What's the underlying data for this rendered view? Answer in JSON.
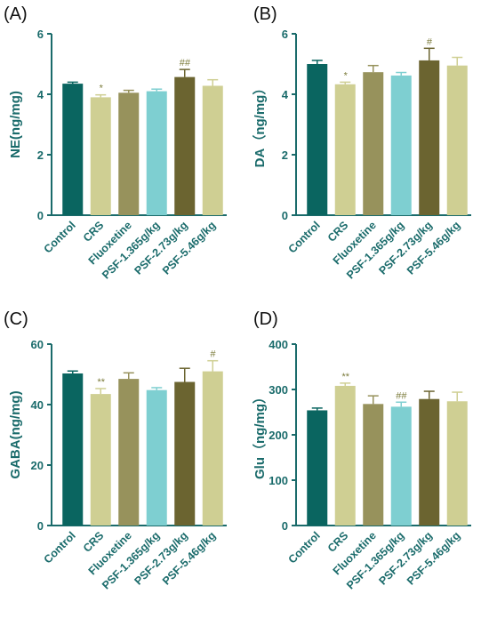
{
  "colors": {
    "axis": "#1a6b6b",
    "sig": "#7c7c3c",
    "Control": "#0a6560",
    "CRS": "#cfcf93",
    "Fluoxetine": "#97925c",
    "PSF-1.365g/kg": "#7ecfd1",
    "PSF-2.73g/kg": "#6b6430",
    "PSF-5.46g/kg": "#cfcf93",
    "error": "#555555"
  },
  "chart_data": [
    {
      "panel": "(A)",
      "type": "bar",
      "ylabel": "NE(ng/mg)",
      "ylim": [
        0,
        6
      ],
      "yticks": [
        0,
        2,
        4,
        6
      ],
      "categories": [
        "Control",
        "CRS",
        "Fluoxetine",
        "PSF-1.365g/kg",
        "PSF-2.73g/kg",
        "PSF-5.46g/kg"
      ],
      "values": [
        4.35,
        3.9,
        4.05,
        4.1,
        4.57,
        4.28
      ],
      "errors": [
        0.05,
        0.08,
        0.08,
        0.07,
        0.25,
        0.2
      ],
      "annotations": [
        "",
        "*",
        "",
        "",
        "##",
        ""
      ]
    },
    {
      "panel": "(B)",
      "type": "bar",
      "ylabel": "DA（ng/mg）",
      "ylim": [
        0,
        6
      ],
      "yticks": [
        0,
        2,
        4,
        6
      ],
      "categories": [
        "Control",
        "CRS",
        "Fluoxetine",
        "PSF-1.365g/kg",
        "PSF-2.73g/kg",
        "PSF-5.46g/kg"
      ],
      "values": [
        5.0,
        4.33,
        4.73,
        4.62,
        5.12,
        4.95
      ],
      "errors": [
        0.12,
        0.07,
        0.22,
        0.1,
        0.4,
        0.27
      ],
      "annotations": [
        "",
        "*",
        "",
        "",
        "#",
        ""
      ]
    },
    {
      "panel": "(C)",
      "type": "bar",
      "ylabel": "GABA(ng/mg)",
      "ylim": [
        0,
        60
      ],
      "yticks": [
        0,
        20,
        40,
        60
      ],
      "categories": [
        "Control",
        "CRS",
        "Fluoxetine",
        "PSF-1.365g/kg",
        "PSF-2.73g/kg",
        "PSF-5.46g/kg"
      ],
      "values": [
        50.3,
        43.5,
        48.5,
        44.8,
        47.5,
        51.0
      ],
      "errors": [
        0.8,
        1.8,
        2.0,
        0.8,
        4.5,
        3.5
      ],
      "annotations": [
        "",
        "**",
        "",
        "",
        "",
        "#"
      ]
    },
    {
      "panel": "(D)",
      "type": "bar",
      "ylabel": "Glu（ng/mg）",
      "ylim": [
        0,
        400
      ],
      "yticks": [
        0,
        100,
        200,
        300,
        400
      ],
      "categories": [
        "Control",
        "CRS",
        "Fluoxetine",
        "PSF-1.365g/kg",
        "PSF-2.73g/kg",
        "PSF-5.46g/kg"
      ],
      "values": [
        254,
        308,
        268,
        262,
        279,
        274
      ],
      "errors": [
        5,
        6,
        18,
        10,
        17,
        20
      ],
      "annotations": [
        "",
        "**",
        "",
        "##",
        "",
        ""
      ]
    }
  ]
}
